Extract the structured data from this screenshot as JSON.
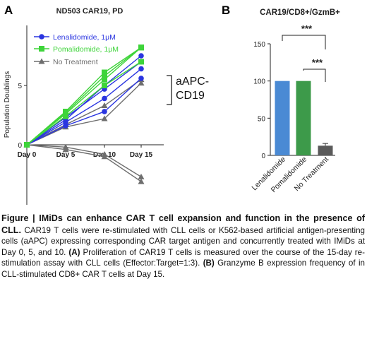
{
  "chart_data": [
    {
      "panel_label": "A",
      "type": "line",
      "title": "ND503 CAR19, PD",
      "xlabel": "",
      "ylabel": "Population Doublings",
      "categories": [
        "Day 0",
        "Day 5",
        "Day 10",
        "Day 15"
      ],
      "ylim": [
        -5,
        10
      ],
      "yticks": [
        0,
        5
      ],
      "legend_position": "top-left",
      "annotation": {
        "line1": "aAPC-",
        "line2": "CD19"
      },
      "series": [
        {
          "name": "Lenalidomide, 1μM",
          "color": "#2a35e0",
          "marker": "circle",
          "lines": [
            [
              0,
              1.6,
              2.8,
              5.6
            ],
            [
              0,
              1.9,
              3.9,
              6.4
            ],
            [
              0,
              2.3,
              4.7,
              7.0
            ],
            [
              0,
              2.1,
              5.0,
              7.5
            ]
          ]
        },
        {
          "name": "Pomalidomide, 1μM",
          "color": "#3ed43a",
          "marker": "square",
          "lines": [
            [
              0,
              2.4,
              5.0,
              7.0
            ],
            [
              0,
              2.6,
              5.5,
              8.2
            ],
            [
              0,
              2.7,
              5.8,
              8.2
            ],
            [
              0,
              2.8,
              6.1,
              8.2
            ]
          ]
        },
        {
          "name": "No Treatment",
          "color": "#6e6e6e",
          "marker": "triangle",
          "lines": [
            [
              0,
              1.5,
              2.2,
              5.2
            ],
            [
              0,
              1.7,
              3.3,
              5.5
            ],
            [
              0,
              -0.2,
              -0.8,
              -2.7
            ],
            [
              0,
              -0.4,
              -1.0,
              -3.1
            ]
          ]
        }
      ]
    },
    {
      "panel_label": "B",
      "type": "bar",
      "title": "CAR19/CD8+/GzmB+",
      "xlabel": "",
      "ylabel": "",
      "categories": [
        "Lenalidomide",
        "Pomalidomide",
        "No Treatment"
      ],
      "values": [
        100,
        100,
        13
      ],
      "errors": [
        0,
        0,
        3
      ],
      "colors": [
        "#4a8ad4",
        "#3d9a4a",
        "#5a5a5a"
      ],
      "ylim": [
        0,
        150
      ],
      "yticks": [
        0,
        50,
        100,
        150
      ],
      "significance": [
        {
          "from": 0,
          "to": 2,
          "label": "***"
        },
        {
          "from": 1,
          "to": 2,
          "label": "***"
        }
      ]
    }
  ],
  "caption": {
    "title": "Figure | IMiDs can enhance CAR T cell expansion and function in the presence of CLL.",
    "body1": " CAR19 T cells were re-stimulated with CLL cells or K562-based artificial antigen-presenting cells (aAPC) expressing corresponding CAR target antigen and concurrently treated with IMiDs at Day 0, 5, and 10. ",
    "label_a": "(A)",
    "body2": " Proliferation of CAR19 T cells is measured over the course of the 15-day re-stimulation assay with CLL cells (Effector:Target=1:3). ",
    "label_b": "(B)",
    "body3": " Granzyme B expression frequency of in CLL-stimulated CD8+ CAR T cells at Day 15."
  }
}
